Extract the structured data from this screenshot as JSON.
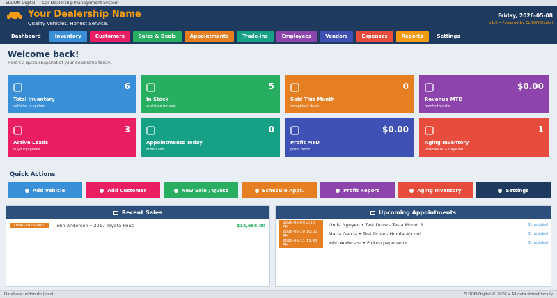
{
  "window_title": "ELDON-Digital — Car Dealership Management System",
  "header": {
    "title": "Your Dealership Name",
    "tagline": "Quality Vehicles. Honest Service.",
    "date": "Friday, 2026-05-08",
    "version": "v1.0 • Powered by ELDON-Digital"
  },
  "nav": [
    "Dashboard",
    "Inventory",
    "Customers",
    "Sales & Deals",
    "Appointments",
    "Trade-ins",
    "Employees",
    "Vendors",
    "Expenses",
    "Reports",
    "Settings"
  ],
  "welcome": {
    "title": "Welcome back!",
    "subtitle": "Here's a quick snapshot of your dealership today."
  },
  "cards": [
    {
      "label": "Total Inventory",
      "value": 6,
      "note": "vehicles in system"
    },
    {
      "label": "In Stock",
      "value": 5,
      "note": "available for sale"
    },
    {
      "label": "Sold This Month",
      "value": 0,
      "note": "completed deals"
    },
    {
      "label": "Revenue MTD",
      "value": "$0.00",
      "note": "month-to-date"
    },
    {
      "label": "Active Leads",
      "value": 3,
      "note": "in your pipeline"
    },
    {
      "label": "Appointments Today",
      "value": 0,
      "note": "scheduled"
    },
    {
      "label": "Profit MTD",
      "value": "$0.00",
      "note": "gross profit"
    },
    {
      "label": "Aging Inventory",
      "value": 1,
      "note": "vehicles 60+ days old"
    }
  ],
  "quick_actions": {
    "title": "Quick Actions",
    "buttons": [
      "Add Vehicle",
      "Add Customer",
      "New Sale / Quote",
      "Schedule Appt.",
      "Profit Report",
      "Aging Inventory",
      "Settings"
    ]
  },
  "recent_sales": {
    "title": "Recent Sales",
    "rows": [
      {
        "id": "DEAL-2026-0001",
        "text": "John Anderson • 2017 Toyota Prius",
        "amount": "$14,655.00"
      }
    ]
  },
  "appointments": {
    "title": "Upcoming Appointments",
    "rows": [
      {
        "when": "2026-05-09 2:30 PM",
        "text": "Linda Nguyen • Test Drive - Tesla Model 3",
        "status": "Scheduled"
      },
      {
        "when": "2026-05-10 10:00 AM",
        "text": "Maria Garcia • Test Drive - Honda Accord",
        "status": "Scheduled"
      },
      {
        "when": "2026-05-11 11:45 AM",
        "text": "John Anderson • Pickup paperwork",
        "status": "Scheduled"
      }
    ]
  },
  "status_bar": {
    "left": "Database: eldon.db (local)",
    "right": "ELDON-Digital © 2026 • All data stored locally"
  }
}
